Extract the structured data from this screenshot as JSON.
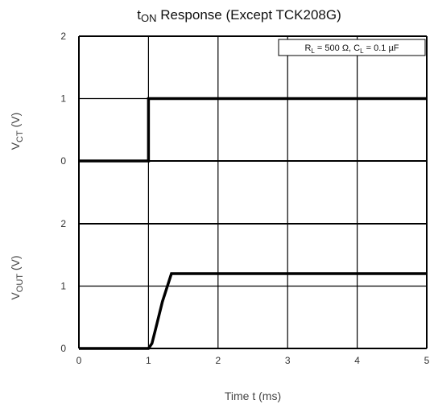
{
  "chart_data": {
    "type": "line",
    "title": {
      "prefix": "t",
      "sub": "ON",
      "rest": " Response (Except TCK208G)"
    },
    "annotation": {
      "r_main": "R",
      "r_sub": "L",
      "r_rest": " = 500 Ω, C",
      "c_sub": "L",
      "c_rest": " = 0.1 µF"
    },
    "xlabel": "Time t (ms)",
    "x_ticks": [
      "0",
      "1",
      "2",
      "3",
      "4",
      "5"
    ],
    "xlim": [
      0,
      5
    ],
    "grid": true,
    "panels": [
      {
        "name": "vct",
        "ylabel": {
          "main": "V",
          "sub": "CT",
          "rest": " (V)"
        },
        "y_ticks": [
          "2",
          "1",
          "0"
        ],
        "ylim": [
          0,
          2
        ],
        "series": [
          {
            "x": [
              0,
              1.0,
              1.0,
              5
            ],
            "y": [
              0,
              0,
              1.0,
              1.0
            ]
          }
        ]
      },
      {
        "name": "vout",
        "ylabel": {
          "main": "V",
          "sub": "OUT",
          "rest": " (V)"
        },
        "y_ticks": [
          "2",
          "1",
          "0"
        ],
        "ylim": [
          0,
          2
        ],
        "series": [
          {
            "x": [
              0,
              1.0,
              1.05,
              1.1,
              1.2,
              1.33,
              5
            ],
            "y": [
              0,
              0,
              0.08,
              0.3,
              0.75,
              1.2,
              1.2
            ]
          }
        ]
      }
    ]
  }
}
